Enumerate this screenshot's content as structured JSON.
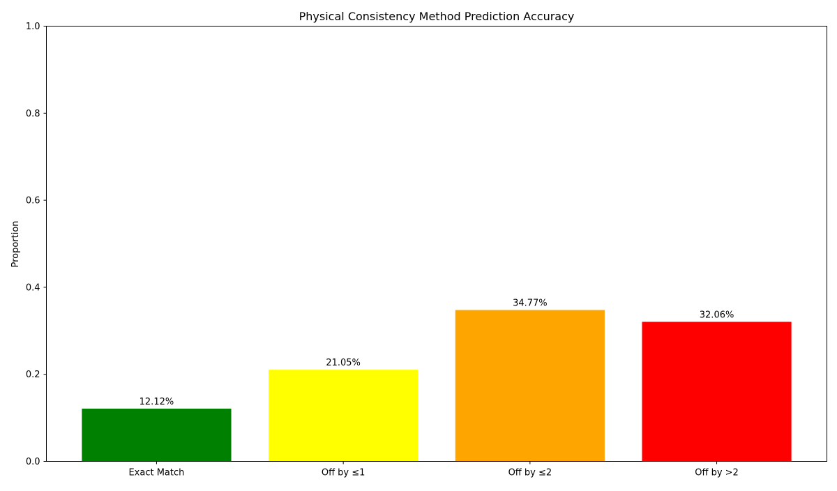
{
  "chart_data": {
    "type": "bar",
    "title": "Physical Consistency Method Prediction Accuracy",
    "xlabel": "",
    "ylabel": "Proportion",
    "categories": [
      "Exact Match",
      "Off by ≤1",
      "Off by ≤2",
      "Off by >2"
    ],
    "values": [
      0.1212,
      0.2105,
      0.3477,
      0.3206
    ],
    "data_labels": [
      "12.12%",
      "21.05%",
      "34.77%",
      "32.06%"
    ],
    "colors": [
      "#008000",
      "#ffff00",
      "#ffa500",
      "#ff0000"
    ],
    "ylim": [
      0,
      1.0
    ],
    "yticks": [
      0.0,
      0.2,
      0.4,
      0.6,
      0.8,
      1.0
    ],
    "ytick_labels": [
      "0.0",
      "0.2",
      "0.4",
      "0.6",
      "0.8",
      "1.0"
    ],
    "grid": false,
    "legend": "none"
  }
}
